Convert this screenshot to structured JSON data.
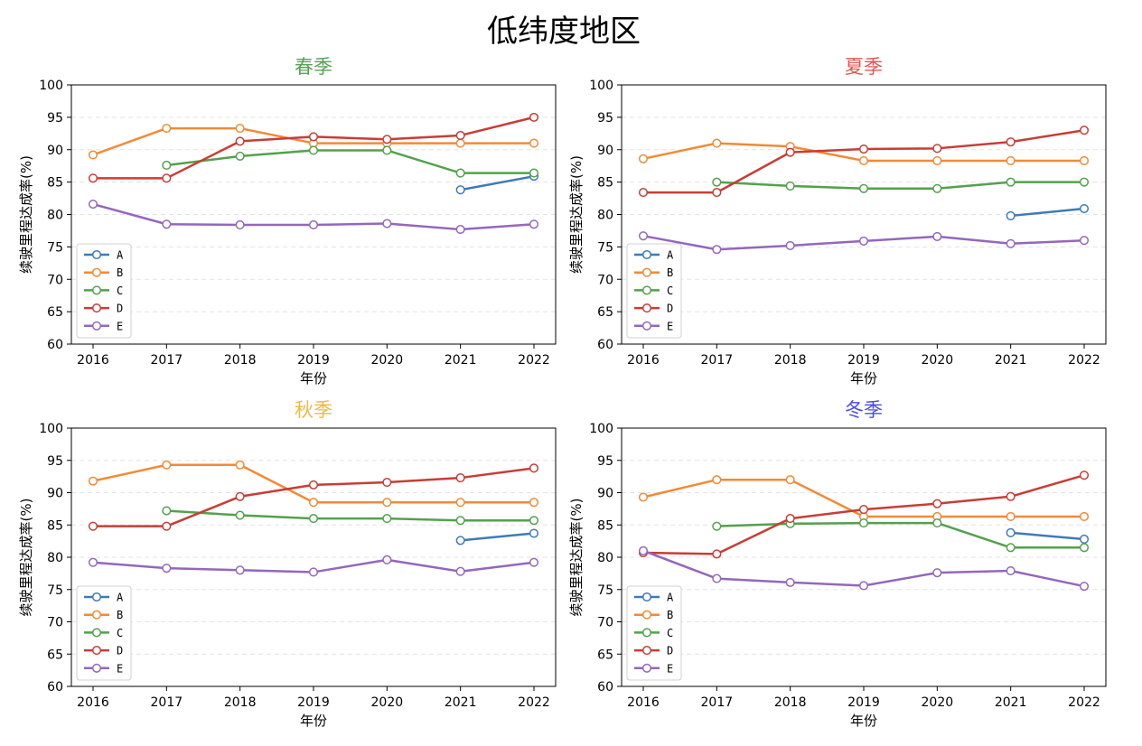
{
  "suptitle": "低纬度地区",
  "series_colors": {
    "A": "#3f7bb5",
    "B": "#f28a35",
    "C": "#53a14d",
    "D": "#c83d36",
    "E": "#9467bd"
  },
  "title_colors": [
    "#5aa05a",
    "#e05555",
    "#f0b847",
    "#4a4ae8"
  ],
  "chart_data": [
    {
      "type": "line",
      "title": "春季",
      "xlabel": "年份",
      "ylabel": "续驶里程达成率(%)",
      "x": [
        2016,
        2017,
        2018,
        2019,
        2020,
        2021,
        2022
      ],
      "ylim": [
        60,
        100
      ],
      "yticks": [
        60,
        65,
        70,
        75,
        80,
        85,
        90,
        95,
        100
      ],
      "grid": "y dashed",
      "legend": "lower-left",
      "series": [
        {
          "name": "A",
          "values": [
            null,
            null,
            null,
            null,
            null,
            83.8,
            85.9
          ]
        },
        {
          "name": "B",
          "values": [
            89.2,
            93.3,
            93.3,
            91.0,
            91.0,
            91.0,
            91.0
          ]
        },
        {
          "name": "C",
          "values": [
            null,
            87.6,
            89.0,
            89.9,
            89.9,
            86.4,
            86.4
          ]
        },
        {
          "name": "D",
          "values": [
            85.6,
            85.6,
            91.3,
            92.0,
            91.6,
            92.2,
            95.0
          ]
        },
        {
          "name": "E",
          "values": [
            81.6,
            78.5,
            78.4,
            78.4,
            78.6,
            77.7,
            78.5
          ]
        }
      ]
    },
    {
      "type": "line",
      "title": "夏季",
      "xlabel": "年份",
      "ylabel": "续驶里程达成率(%)",
      "x": [
        2016,
        2017,
        2018,
        2019,
        2020,
        2021,
        2022
      ],
      "ylim": [
        60,
        100
      ],
      "yticks": [
        60,
        65,
        70,
        75,
        80,
        85,
        90,
        95,
        100
      ],
      "grid": "y dashed",
      "legend": "lower-left",
      "series": [
        {
          "name": "A",
          "values": [
            null,
            null,
            null,
            null,
            null,
            79.8,
            80.9
          ]
        },
        {
          "name": "B",
          "values": [
            88.6,
            91.0,
            90.5,
            88.3,
            88.3,
            88.3,
            88.3
          ]
        },
        {
          "name": "C",
          "values": [
            null,
            85.0,
            84.4,
            84.0,
            84.0,
            85.0,
            85.0
          ]
        },
        {
          "name": "D",
          "values": [
            83.4,
            83.4,
            89.6,
            90.1,
            90.2,
            91.2,
            93.0
          ]
        },
        {
          "name": "E",
          "values": [
            76.7,
            74.6,
            75.2,
            75.9,
            76.6,
            75.5,
            76.0
          ]
        }
      ]
    },
    {
      "type": "line",
      "title": "秋季",
      "xlabel": "年份",
      "ylabel": "续驶里程达成率(%)",
      "x": [
        2016,
        2017,
        2018,
        2019,
        2020,
        2021,
        2022
      ],
      "ylim": [
        60,
        100
      ],
      "yticks": [
        60,
        65,
        70,
        75,
        80,
        85,
        90,
        95,
        100
      ],
      "grid": "y dashed",
      "legend": "lower-left",
      "series": [
        {
          "name": "A",
          "values": [
            null,
            null,
            null,
            null,
            null,
            82.6,
            83.7
          ]
        },
        {
          "name": "B",
          "values": [
            91.8,
            94.3,
            94.3,
            88.5,
            88.5,
            88.5,
            88.5
          ]
        },
        {
          "name": "C",
          "values": [
            null,
            87.2,
            86.5,
            86.0,
            86.0,
            85.7,
            85.7
          ]
        },
        {
          "name": "D",
          "values": [
            84.8,
            84.8,
            89.4,
            91.2,
            91.6,
            92.3,
            93.8
          ]
        },
        {
          "name": "E",
          "values": [
            79.2,
            78.3,
            78.0,
            77.7,
            79.6,
            77.8,
            79.2
          ]
        }
      ]
    },
    {
      "type": "line",
      "title": "冬季",
      "xlabel": "年份",
      "ylabel": "续驶里程达成率(%)",
      "x": [
        2016,
        2017,
        2018,
        2019,
        2020,
        2021,
        2022
      ],
      "ylim": [
        60,
        100
      ],
      "yticks": [
        60,
        65,
        70,
        75,
        80,
        85,
        90,
        95,
        100
      ],
      "grid": "y dashed",
      "legend": "lower-left",
      "series": [
        {
          "name": "A",
          "values": [
            null,
            null,
            null,
            null,
            null,
            83.8,
            82.8
          ]
        },
        {
          "name": "B",
          "values": [
            89.3,
            92.0,
            92.0,
            86.3,
            86.3,
            86.3,
            86.3
          ]
        },
        {
          "name": "C",
          "values": [
            null,
            84.8,
            85.2,
            85.3,
            85.3,
            81.5,
            81.5
          ]
        },
        {
          "name": "D",
          "values": [
            80.7,
            80.5,
            86.0,
            87.4,
            88.3,
            89.4,
            92.7
          ]
        },
        {
          "name": "E",
          "values": [
            81.0,
            76.7,
            76.1,
            75.6,
            77.6,
            77.9,
            75.5
          ]
        }
      ]
    }
  ]
}
